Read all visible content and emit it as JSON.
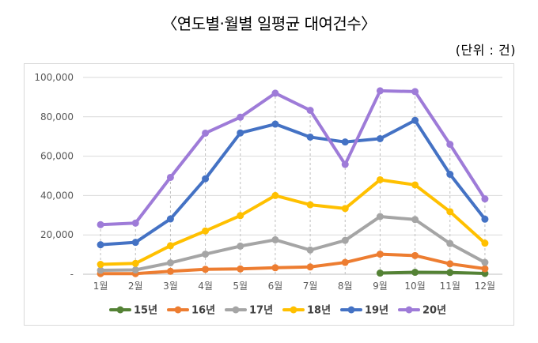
{
  "header": {
    "title": "〈연도별·월별 일평균 대여건수〉",
    "unit": "(단위 : 건)"
  },
  "chart_data": {
    "type": "line",
    "title": "〈연도별·월별 일평균 대여건수〉",
    "unit_label": "(단위 : 건)",
    "categories": [
      "1월",
      "2월",
      "3월",
      "4월",
      "5월",
      "6월",
      "7월",
      "8월",
      "9월",
      "10월",
      "11월",
      "12월"
    ],
    "ylim": [
      0,
      100000
    ],
    "yticks": [
      "-",
      "20,000",
      "40,000",
      "60,000",
      "80,000",
      "100,000"
    ],
    "grid": true,
    "legend_position": "bottom",
    "series": [
      {
        "name": "15년",
        "color": "#548235",
        "values": [
          null,
          null,
          null,
          null,
          null,
          null,
          null,
          null,
          600,
          1000,
          900,
          400
        ]
      },
      {
        "name": "16년",
        "color": "#ED7D31",
        "values": [
          300,
          300,
          1500,
          2500,
          2700,
          3300,
          3700,
          6000,
          10200,
          9500,
          5300,
          2800
        ]
      },
      {
        "name": "17년",
        "color": "#A5A5A5",
        "values": [
          2000,
          2200,
          5800,
          10200,
          14300,
          17500,
          12300,
          17200,
          29300,
          27800,
          15600,
          6000
        ]
      },
      {
        "name": "18년",
        "color": "#FFC000",
        "values": [
          5000,
          5500,
          14500,
          22000,
          29800,
          40000,
          35300,
          33400,
          48000,
          45400,
          31800,
          15800
        ]
      },
      {
        "name": "19년",
        "color": "#4472C4",
        "values": [
          15000,
          16200,
          28100,
          48500,
          71800,
          76300,
          69700,
          67200,
          68900,
          78200,
          50800,
          28000
        ]
      },
      {
        "name": "20년",
        "color": "#9E7BD8",
        "values": [
          25200,
          26000,
          49200,
          71700,
          79800,
          92000,
          83300,
          55800,
          93200,
          92800,
          66000,
          38300
        ]
      }
    ]
  }
}
